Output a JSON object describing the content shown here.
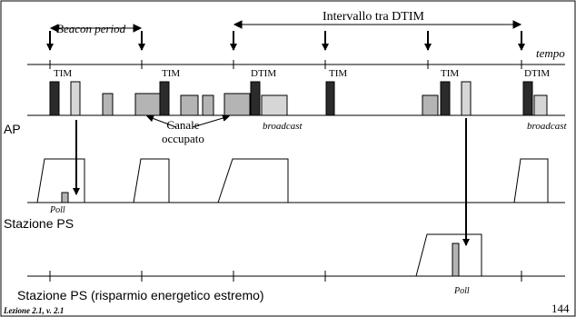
{
  "labels": {
    "beacon_period": "Beacon period",
    "dtim_interval": "Intervallo tra DTIM",
    "time": "tempo",
    "tim": "TIM",
    "dtim": "DTIM",
    "busy_channel": "Canale\noccupato",
    "broadcast": "broadcast",
    "ap": "AP",
    "ps_station": "Stazione PS",
    "poll": "Poll",
    "ps_station_extreme": "Stazione PS (risparmio energetico estremo)"
  },
  "footer": {
    "lesson": "Lezione 2.1, v. 2.1",
    "page_number": "144"
  },
  "colors": {
    "beacon_frame": "#2b2b2b",
    "data_frame": "#b4b4b4",
    "light_frame": "#d6d6d6",
    "line": "#000000"
  }
}
